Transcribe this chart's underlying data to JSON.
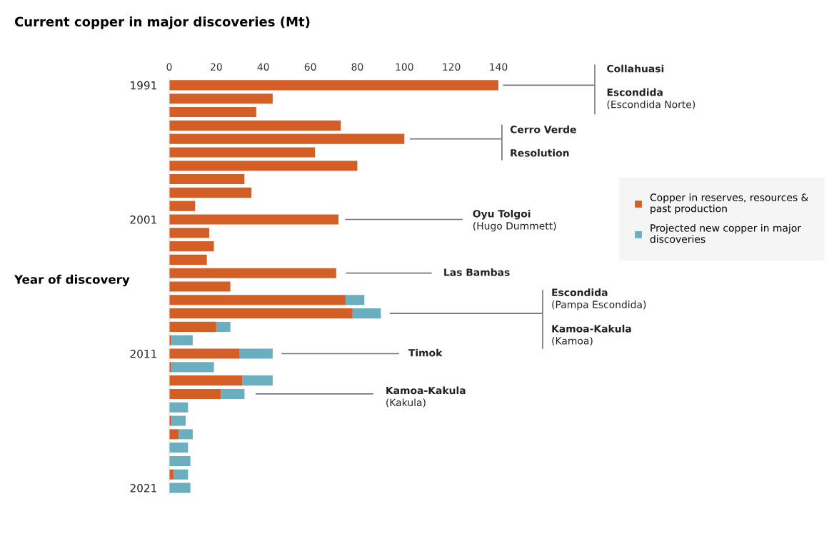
{
  "chart_data": {
    "type": "bar",
    "orientation": "horizontal",
    "stacked": true,
    "title": "Current copper in major discoveries (Mt)",
    "ylabel": "Year of discovery",
    "categories": [
      "1991",
      null,
      null,
      null,
      null,
      null,
      null,
      null,
      null,
      null,
      "2001",
      null,
      null,
      null,
      null,
      null,
      null,
      null,
      null,
      null,
      "2011",
      null,
      null,
      null,
      null,
      null,
      null,
      null,
      null,
      null,
      "2021"
    ],
    "series": [
      {
        "name": "Copper in reserves, resources &\npast production",
        "color": "#d35f27",
        "values": [
          140,
          44,
          37,
          73,
          100,
          62,
          80,
          32,
          35,
          11,
          72,
          17,
          19,
          16,
          71,
          26,
          75,
          78,
          20,
          1,
          30,
          1,
          31,
          22,
          0,
          1,
          4,
          0,
          0,
          2,
          0
        ]
      },
      {
        "name": "Projected new copper in major\ndiscoveries",
        "color": "#6aaebf",
        "values": [
          0,
          0,
          0,
          0,
          0,
          0,
          0,
          0,
          0,
          0,
          0,
          0,
          0,
          0,
          0,
          0,
          8,
          12,
          6,
          9,
          14,
          18,
          13,
          10,
          8,
          6,
          6,
          8,
          9,
          6,
          9
        ]
      }
    ],
    "xlim": [
      0,
      140
    ],
    "xticks": [
      0,
      20,
      40,
      60,
      80,
      100,
      120,
      140
    ],
    "grid": false,
    "legend": "right",
    "annotations": [
      "Collahuasi",
      "Escondida\n(Escondida Norte)",
      "Cerro Verde",
      "Resolution",
      "Oyu Tolgoi\n(Hugo Dummett)",
      "Las Bambas",
      "Escondida\n(Pampa Escondida)",
      "Kamoa-Kakula\n(Kamoa)",
      "Timok",
      "Kamoa-Kakula\n(Kakula)"
    ]
  }
}
